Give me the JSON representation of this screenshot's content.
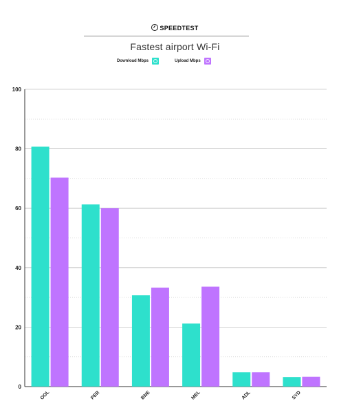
{
  "brand": {
    "name": "SPEEDTEST",
    "icon": "speedometer-icon"
  },
  "chart_data": {
    "type": "bar",
    "title": "Fastest airport Wi-Fi",
    "categories": [
      "OOL",
      "PER",
      "BNE",
      "MEL",
      "ADL",
      "SYD"
    ],
    "series": [
      {
        "name": "Download Mbps",
        "color": "#2ee0cc",
        "values": [
          80.7,
          61.3,
          30.7,
          21.2,
          4.8,
          3.2
        ]
      },
      {
        "name": "Upload Mbps",
        "color": "#bf74ff",
        "values": [
          70.3,
          60.0,
          33.3,
          33.6,
          4.8,
          3.3
        ]
      }
    ],
    "ylim": [
      0,
      100
    ],
    "yticks": [
      0,
      20,
      40,
      60,
      80,
      100
    ],
    "grid": true,
    "legend": "top-center",
    "xlabel": "",
    "ylabel": ""
  }
}
